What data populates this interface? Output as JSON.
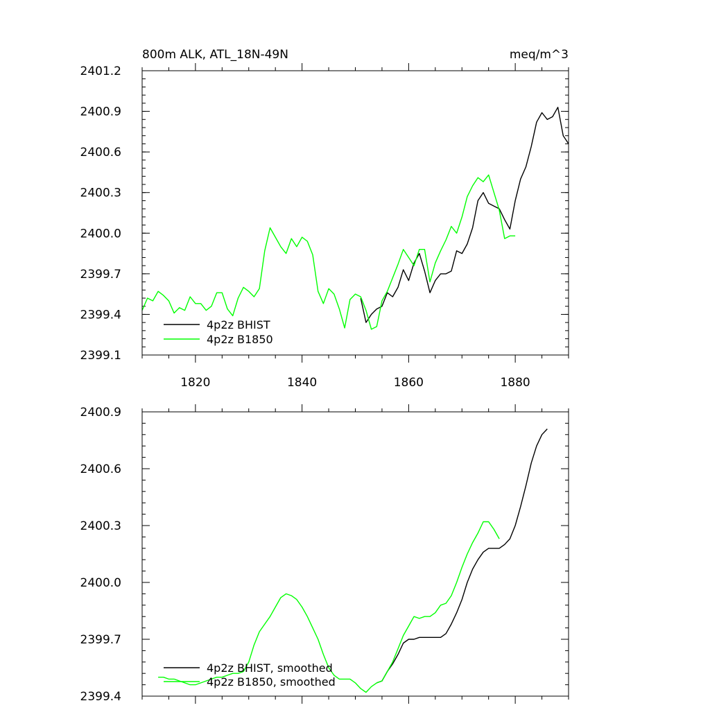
{
  "chart_data": [
    {
      "type": "line",
      "title_left": "800m ALK, ATL_18N-49N",
      "title_right": "meq/m^3",
      "xlabel": "",
      "ylabel": "",
      "xlim": [
        1810,
        1890
      ],
      "ylim": [
        2399.1,
        2401.2
      ],
      "xticks": [
        1820,
        1840,
        1860,
        1880
      ],
      "xtick_labels": [
        "1820",
        "1840",
        "1860",
        "1880"
      ],
      "yticks": [
        2399.1,
        2399.4,
        2399.7,
        2400.0,
        2400.3,
        2400.6,
        2400.9,
        2401.2
      ],
      "ytick_labels": [
        "2399.1",
        "2399.4",
        "2399.7",
        "2400.0",
        "2400.3",
        "2400.6",
        "2400.9",
        "2401.2"
      ],
      "grid": false,
      "legend_position": "bottom-left",
      "series": [
        {
          "name": "4p2z BHIST",
          "color": "#000000",
          "x": [
            1851,
            1852,
            1853,
            1854,
            1855,
            1856,
            1857,
            1858,
            1859,
            1860,
            1861,
            1862,
            1863,
            1864,
            1865,
            1866,
            1867,
            1868,
            1869,
            1870,
            1871,
            1872,
            1873,
            1874,
            1875,
            1876,
            1877,
            1878,
            1879,
            1880,
            1881,
            1882,
            1883,
            1884,
            1885,
            1886,
            1887,
            1888,
            1889,
            1890
          ],
          "values": [
            2399.52,
            2399.34,
            2399.4,
            2399.44,
            2399.46,
            2399.56,
            2399.53,
            2399.6,
            2399.73,
            2399.65,
            2399.78,
            2399.85,
            2399.72,
            2399.56,
            2399.65,
            2399.7,
            2399.7,
            2399.72,
            2399.87,
            2399.85,
            2399.92,
            2400.04,
            2400.24,
            2400.3,
            2400.22,
            2400.2,
            2400.18,
            2400.1,
            2400.03,
            2400.24,
            2400.4,
            2400.49,
            2400.64,
            2400.82,
            2400.89,
            2400.84,
            2400.86,
            2400.93,
            2400.72,
            2400.66
          ]
        },
        {
          "name": "4p2z B1850",
          "color": "#00ff00",
          "x": [
            1810,
            1811,
            1812,
            1813,
            1814,
            1815,
            1816,
            1817,
            1818,
            1819,
            1820,
            1821,
            1822,
            1823,
            1824,
            1825,
            1826,
            1827,
            1828,
            1829,
            1830,
            1831,
            1832,
            1833,
            1834,
            1835,
            1836,
            1837,
            1838,
            1839,
            1840,
            1841,
            1842,
            1843,
            1844,
            1845,
            1846,
            1847,
            1848,
            1849,
            1850,
            1851,
            1852,
            1853,
            1854,
            1855,
            1856,
            1857,
            1858,
            1859,
            1860,
            1861,
            1862,
            1863,
            1864,
            1865,
            1866,
            1867,
            1868,
            1869,
            1870,
            1871,
            1872,
            1873,
            1874,
            1875,
            1876,
            1877,
            1878,
            1879,
            1880
          ],
          "values": [
            2399.43,
            2399.52,
            2399.5,
            2399.57,
            2399.54,
            2399.5,
            2399.41,
            2399.45,
            2399.43,
            2399.53,
            2399.48,
            2399.48,
            2399.43,
            2399.46,
            2399.56,
            2399.56,
            2399.44,
            2399.39,
            2399.52,
            2399.6,
            2399.57,
            2399.53,
            2399.59,
            2399.87,
            2400.04,
            2399.97,
            2399.9,
            2399.85,
            2399.96,
            2399.9,
            2399.97,
            2399.94,
            2399.84,
            2399.57,
            2399.48,
            2399.59,
            2399.55,
            2399.44,
            2399.3,
            2399.51,
            2399.55,
            2399.53,
            2399.43,
            2399.29,
            2399.31,
            2399.5,
            2399.57,
            2399.67,
            2399.77,
            2399.88,
            2399.82,
            2399.76,
            2399.88,
            2399.88,
            2399.64,
            2399.78,
            2399.87,
            2399.95,
            2400.05,
            2400.0,
            2400.12,
            2400.27,
            2400.35,
            2400.41,
            2400.38,
            2400.43,
            2400.3,
            2400.17,
            2399.96,
            2399.98,
            2399.98
          ]
        }
      ]
    },
    {
      "type": "line",
      "title_left": "",
      "title_right": "",
      "xlabel": "",
      "ylabel": "",
      "xlim": [
        1810,
        1890
      ],
      "ylim": [
        2399.4,
        2400.9
      ],
      "xticks": [
        1820,
        1840,
        1860,
        1880
      ],
      "xtick_labels": [],
      "yticks": [
        2399.4,
        2399.7,
        2400.0,
        2400.3,
        2400.6,
        2400.9
      ],
      "ytick_labels": [
        "2399.4",
        "2399.7",
        "2400.0",
        "2400.3",
        "2400.6",
        "2400.9"
      ],
      "grid": false,
      "legend_position": "bottom-left",
      "series": [
        {
          "name": "4p2z BHIST, smoothed",
          "color": "#000000",
          "x": [
            1854,
            1855,
            1856,
            1857,
            1858,
            1859,
            1860,
            1861,
            1862,
            1863,
            1864,
            1865,
            1866,
            1867,
            1868,
            1869,
            1870,
            1871,
            1872,
            1873,
            1874,
            1875,
            1876,
            1877,
            1878,
            1879,
            1880,
            1881,
            1882,
            1883,
            1884,
            1885,
            1886
          ],
          "values": [
            2399.47,
            2399.48,
            2399.53,
            2399.57,
            2399.62,
            2399.68,
            2399.7,
            2399.7,
            2399.71,
            2399.71,
            2399.71,
            2399.71,
            2399.71,
            2399.73,
            2399.78,
            2399.84,
            2399.91,
            2400.0,
            2400.07,
            2400.12,
            2400.16,
            2400.18,
            2400.18,
            2400.18,
            2400.2,
            2400.23,
            2400.3,
            2400.4,
            2400.51,
            2400.63,
            2400.72,
            2400.78,
            2400.81
          ]
        },
        {
          "name": "4p2z B1850, smoothed",
          "color": "#00ff00",
          "x": [
            1813,
            1814,
            1815,
            1816,
            1817,
            1818,
            1819,
            1820,
            1821,
            1822,
            1823,
            1824,
            1825,
            1826,
            1827,
            1828,
            1829,
            1830,
            1831,
            1832,
            1833,
            1834,
            1835,
            1836,
            1837,
            1838,
            1839,
            1840,
            1841,
            1842,
            1843,
            1844,
            1845,
            1846,
            1847,
            1848,
            1849,
            1850,
            1851,
            1852,
            1853,
            1854,
            1855,
            1856,
            1857,
            1858,
            1859,
            1860,
            1861,
            1862,
            1863,
            1864,
            1865,
            1866,
            1867,
            1868,
            1869,
            1870,
            1871,
            1872,
            1873,
            1874,
            1875,
            1876,
            1877
          ],
          "values": [
            2399.5,
            2399.5,
            2399.49,
            2399.49,
            2399.48,
            2399.47,
            2399.46,
            2399.46,
            2399.47,
            2399.48,
            2399.49,
            2399.5,
            2399.5,
            2399.51,
            2399.52,
            2399.52,
            2399.53,
            2399.58,
            2399.67,
            2399.74,
            2399.78,
            2399.82,
            2399.87,
            2399.92,
            2399.94,
            2399.93,
            2399.91,
            2399.87,
            2399.82,
            2399.76,
            2399.7,
            2399.62,
            2399.55,
            2399.51,
            2399.49,
            2399.49,
            2399.49,
            2399.47,
            2399.44,
            2399.42,
            2399.45,
            2399.47,
            2399.48,
            2399.53,
            2399.58,
            2399.65,
            2399.72,
            2399.77,
            2399.82,
            2399.81,
            2399.82,
            2399.82,
            2399.84,
            2399.88,
            2399.89,
            2399.93,
            2400.0,
            2400.08,
            2400.15,
            2400.21,
            2400.26,
            2400.32,
            2400.32,
            2400.28,
            2400.23
          ]
        }
      ]
    }
  ]
}
